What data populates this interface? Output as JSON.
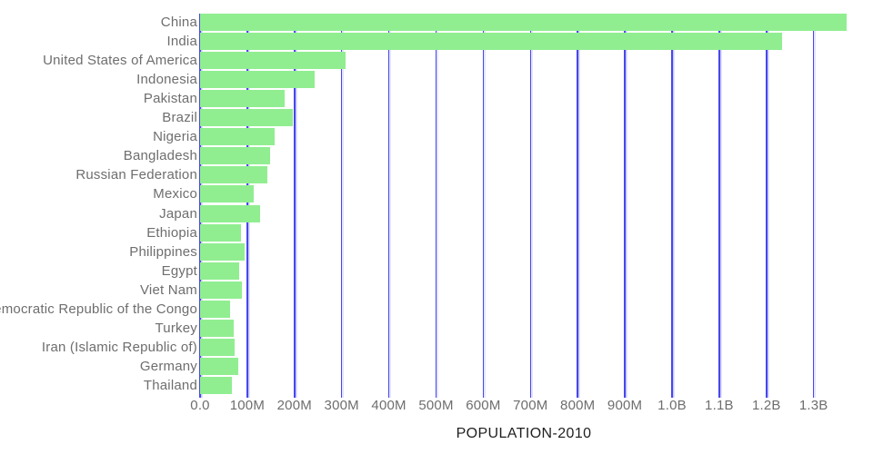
{
  "chart_data": {
    "type": "bar",
    "orientation": "horizontal",
    "xlabel": "POPULATION-2010",
    "unit": "persons",
    "categories": [
      "China",
      "India",
      "United States of America",
      "Indonesia",
      "Pakistan",
      "Brazil",
      "Nigeria",
      "Bangladesh",
      "Russian Federation",
      "Mexico",
      "Japan",
      "Ethiopia",
      "Philippines",
      "Egypt",
      "Viet Nam",
      "Democratic Republic of the Congo",
      "Turkey",
      "Iran (Islamic Republic of)",
      "Germany",
      "Thailand"
    ],
    "values_millions": [
      1369,
      1234,
      309,
      242,
      179,
      196,
      158,
      148,
      143,
      114,
      128,
      87,
      94,
      82,
      88,
      64,
      72,
      74,
      81,
      67
    ],
    "x_ticks": [
      {
        "label": "0.0",
        "value": 0
      },
      {
        "label": "100M",
        "value": 100
      },
      {
        "label": "200M",
        "value": 200
      },
      {
        "label": "300M",
        "value": 300
      },
      {
        "label": "400M",
        "value": 400
      },
      {
        "label": "500M",
        "value": 500
      },
      {
        "label": "600M",
        "value": 600
      },
      {
        "label": "700M",
        "value": 700
      },
      {
        "label": "800M",
        "value": 800
      },
      {
        "label": "900M",
        "value": 900
      },
      {
        "label": "1.0B",
        "value": 1000
      },
      {
        "label": "1.1B",
        "value": 1100
      },
      {
        "label": "1.2B",
        "value": 1200
      },
      {
        "label": "1.3B",
        "value": 1300
      }
    ],
    "xlim_millions": [
      0,
      1425
    ],
    "grid": "vertical",
    "legend": "none",
    "colors": {
      "bar": "#90ee90",
      "gridline": "#4747ec",
      "tick_label": "#6e6e6e",
      "category_label": "#6e6e6e",
      "axis_title": "#1f1f1f",
      "background": "#ffffff"
    }
  }
}
